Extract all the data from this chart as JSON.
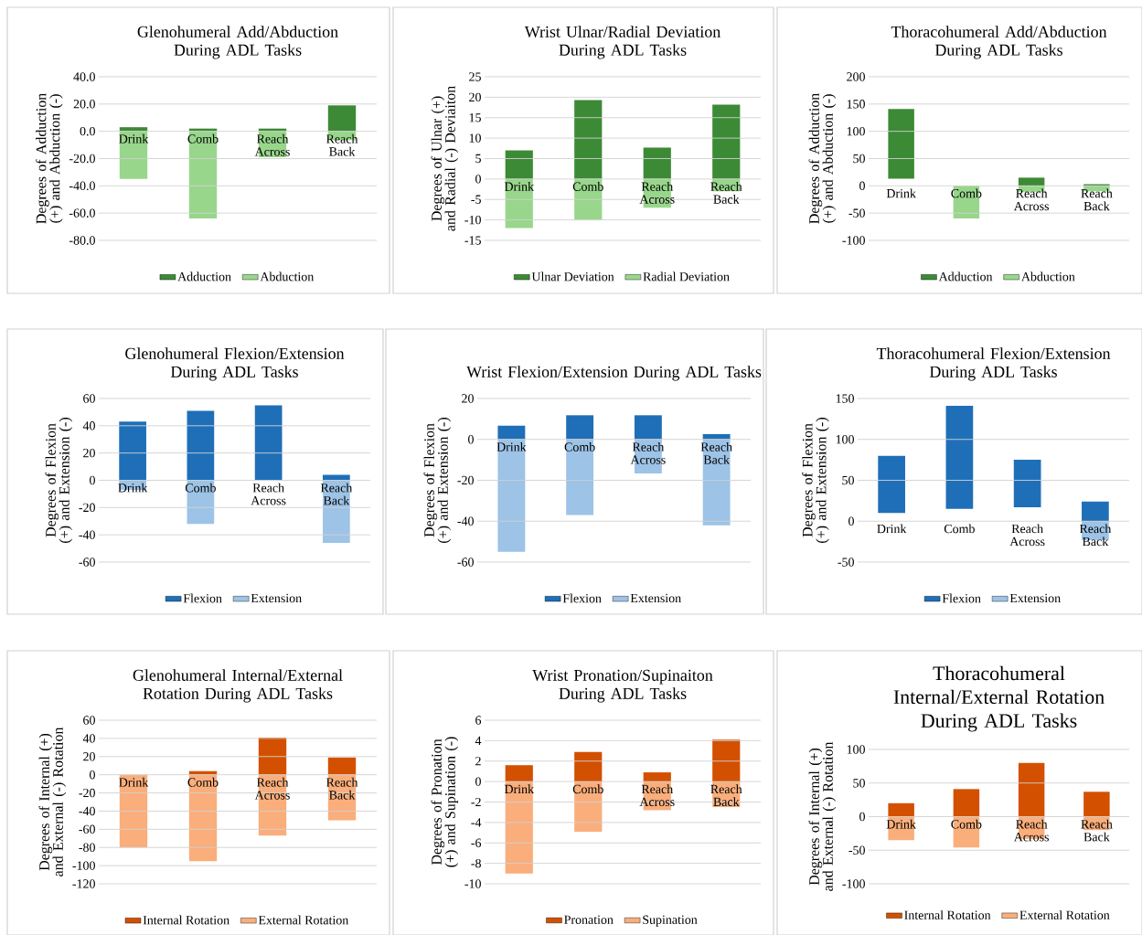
{
  "chart_data": [
    {
      "type": "bar",
      "title": "Glenohumeral Add/Abduction During ADL Tasks",
      "ylabel": "Degrees of Adduction (+) and Abduction (-)",
      "categories": [
        "Drink",
        "Comb",
        "Reach Across",
        "Reach Back"
      ],
      "stacked": true,
      "grid": "y",
      "legend": "bottom",
      "ylim": [
        -80,
        40
      ],
      "yticks": [
        {
          "value": -80,
          "label": "-80.0"
        },
        {
          "value": -60,
          "label": "-60.0"
        },
        {
          "value": -40,
          "label": "-40.0"
        },
        {
          "value": -20,
          "label": "-20.0"
        },
        {
          "value": 0,
          "label": "0.0"
        },
        {
          "value": 20,
          "label": "20.0"
        },
        {
          "value": 40,
          "label": "40.0"
        }
      ],
      "series": [
        {
          "name": "Adduction",
          "color": "#3c8a35",
          "values": [
            3,
            2,
            2,
            19
          ]
        },
        {
          "name": "Abduction",
          "color": "#98d68b",
          "values": [
            -35,
            -64,
            -19,
            -6.5
          ]
        }
      ]
    },
    {
      "type": "bar",
      "title": "Wrist Ulnar/Radial Deviation During ADL Tasks",
      "ylabel": "Degrees of Ulnar (+) and Radial (-) Deviaiton",
      "categories": [
        "Drink",
        "Comb",
        "Reach Across",
        "Reach Back"
      ],
      "stacked": true,
      "grid": "y",
      "legend": "bottom",
      "ylim": [
        -15,
        25
      ],
      "yticks": [
        -15,
        -10,
        -5,
        0,
        5,
        10,
        15,
        20,
        25
      ],
      "series": [
        {
          "name": "Ulnar Deviation",
          "color": "#3c8a35",
          "values": [
            7,
            19.3,
            7.7,
            18.2
          ]
        },
        {
          "name": "Radial Deviation",
          "color": "#98d68b",
          "values": [
            -12,
            -10,
            -7,
            -3
          ]
        }
      ]
    },
    {
      "type": "bar",
      "title": "Thoracohumeral Add/Abduction During ADL Tasks",
      "ylabel": "Degrees of Adduction (+) and Abduction (-)",
      "categories": [
        "Drink",
        "Comb",
        "Reach Across",
        "Reach Back"
      ],
      "stacked": true,
      "grid": "y",
      "legend": "bottom",
      "ylim": [
        -100,
        200
      ],
      "yticks": [
        -100,
        -50,
        0,
        50,
        100,
        150,
        200
      ],
      "series": [
        {
          "name": "Adduction",
          "color": "#3c8a35",
          "base": [
            13,
            null,
            0,
            0
          ],
          "values": [
            128,
            null,
            15,
            3
          ]
        },
        {
          "name": "Abduction",
          "color": "#98d68b",
          "values": [
            null,
            -60,
            -11,
            -10
          ]
        }
      ]
    },
    {
      "type": "bar",
      "title": "Glenohumeral Flexion/Extension During ADL Tasks",
      "ylabel": "Degrees of Flexion (+) and Extension (-)",
      "categories": [
        "Drink",
        "Comb",
        "Reach Across",
        "Reach Back"
      ],
      "stacked": true,
      "grid": "y",
      "legend": "bottom",
      "ylim": [
        -60,
        60
      ],
      "yticks": [
        -60,
        -40,
        -20,
        0,
        20,
        40,
        60
      ],
      "series": [
        {
          "name": "Flexion",
          "color": "#1f6fb8",
          "values": [
            43,
            51,
            55,
            4
          ]
        },
        {
          "name": "Extension",
          "color": "#9dc3e6",
          "values": [
            -7,
            -32,
            null,
            -46
          ]
        }
      ]
    },
    {
      "type": "bar",
      "title": "Wrist Flexion/Extension During ADL Tasks",
      "ylabel": "Degrees of Flexion (+) and Extension (-)",
      "categories": [
        "Drink",
        "Comb",
        "Reach Across",
        "Reach Back"
      ],
      "stacked": true,
      "grid": "y",
      "legend": "bottom",
      "ylim": [
        -60,
        20
      ],
      "yticks": [
        -60,
        -40,
        -20,
        0,
        20
      ],
      "series": [
        {
          "name": "Flexion",
          "color": "#1f6fb8",
          "values": [
            6.7,
            11.8,
            11.8,
            2.6
          ]
        },
        {
          "name": "Extension",
          "color": "#9dc3e6",
          "values": [
            -55,
            -37,
            -16.7,
            -42
          ]
        }
      ]
    },
    {
      "type": "bar",
      "title": "Thoracohumeral Flexion/Extension During ADL Tasks",
      "ylabel": "Degrees of Flexion (+) and Extension (-)",
      "categories": [
        "Drink",
        "Comb",
        "Reach Across",
        "Reach Back"
      ],
      "stacked": true,
      "grid": "y",
      "legend": "bottom",
      "ylim": [
        -50,
        150
      ],
      "yticks": [
        -50,
        0,
        50,
        100,
        150
      ],
      "series": [
        {
          "name": "Flexion",
          "color": "#1f6fb8",
          "base": [
            10,
            15,
            17,
            0
          ],
          "values": [
            70,
            126,
            58,
            24
          ]
        },
        {
          "name": "Extension",
          "color": "#9dc3e6",
          "values": [
            null,
            null,
            null,
            -23
          ]
        }
      ]
    },
    {
      "type": "bar",
      "title": "Glenohumeral Internal/External Rotation During ADL Tasks",
      "ylabel": "Degrees of Internal (+) and External (-) Rotation",
      "categories": [
        "Drink",
        "Comb",
        "Reach Across",
        "Reach Back"
      ],
      "stacked": true,
      "grid": "y",
      "legend": "bottom",
      "ylim": [
        -120,
        60
      ],
      "yticks": [
        -120,
        -100,
        -80,
        -60,
        -40,
        -20,
        0,
        20,
        40,
        60
      ],
      "series": [
        {
          "name": "Internal Rotation",
          "color": "#d35000",
          "values": [
            null,
            4,
            41,
            19
          ]
        },
        {
          "name": "External Rotation",
          "color": "#f9ae7c",
          "values": [
            -80,
            -95,
            -67,
            -50
          ]
        }
      ]
    },
    {
      "type": "bar",
      "title": "Wrist Pronation/Supinaiton During ADL Tasks",
      "ylabel": "Degrees of Pronation (+) and Supination (-)",
      "categories": [
        "Drink",
        "Comb",
        "Reach Across",
        "Reach Back"
      ],
      "stacked": true,
      "grid": "y",
      "legend": "bottom",
      "ylim": [
        -10,
        6
      ],
      "yticks": [
        -10,
        -8,
        -6,
        -4,
        -2,
        0,
        2,
        4,
        6
      ],
      "series": [
        {
          "name": "Pronation",
          "color": "#d35000",
          "values": [
            1.6,
            2.9,
            0.9,
            4.1
          ]
        },
        {
          "name": "Supination",
          "color": "#f9ae7c",
          "values": [
            -9,
            -4.9,
            -2.8,
            -2.5
          ]
        }
      ]
    },
    {
      "type": "bar",
      "title": "Thoracohumeral Internal/External Rotation During ADL Tasks",
      "ylabel": "Degrees of Internal (+) and External (-) Rotation",
      "categories": [
        "Drink",
        "Comb",
        "Reach Across",
        "Reach Back"
      ],
      "stacked": true,
      "grid": "y",
      "legend": "bottom",
      "ylim": [
        -100,
        100
      ],
      "yticks": [
        -100,
        -50,
        0,
        50,
        100
      ],
      "series": [
        {
          "name": "Internal Rotation",
          "color": "#d35000",
          "values": [
            20,
            41,
            80,
            37
          ]
        },
        {
          "name": "External Rotation",
          "color": "#f9ae7c",
          "values": [
            -35,
            -46,
            -33,
            -20
          ]
        }
      ]
    }
  ]
}
